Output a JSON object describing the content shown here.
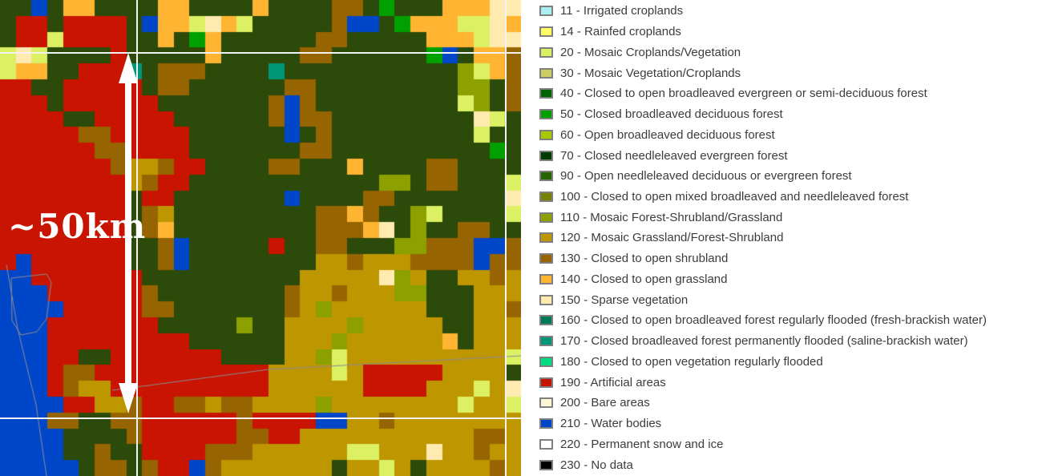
{
  "scale_annotation": {
    "label": "~50km",
    "arrow_color": "#FFFFFF"
  },
  "legend": {
    "separator": " - ",
    "items": [
      {
        "code": "11",
        "label": "Irrigated croplands",
        "color": "#AAF0F0"
      },
      {
        "code": "14",
        "label": "Rainfed croplands",
        "color": "#FFFF64"
      },
      {
        "code": "20",
        "label": "Mosaic Croplands/Vegetation",
        "color": "#DCF064"
      },
      {
        "code": "30",
        "label": "Mosaic Vegetation/Croplands",
        "color": "#CDCD66"
      },
      {
        "code": "40",
        "label": "Closed to open broadleaved evergreen or semi-deciduous forest",
        "color": "#006400"
      },
      {
        "code": "50",
        "label": "Closed broadleaved deciduous forest",
        "color": "#00A000"
      },
      {
        "code": "60",
        "label": "Open broadleaved deciduous forest",
        "color": "#AAC800"
      },
      {
        "code": "70",
        "label": "Closed needleleaved evergreen forest",
        "color": "#003C00"
      },
      {
        "code": "90",
        "label": "Open needleleaved deciduous or evergreen forest",
        "color": "#286400"
      },
      {
        "code": "100",
        "label": "Closed to open mixed broadleaved and needleleaved forest",
        "color": "#788200"
      },
      {
        "code": "110",
        "label": "Mosaic Forest-Shrubland/Grassland",
        "color": "#8CA000"
      },
      {
        "code": "120",
        "label": "Mosaic Grassland/Forest-Shrubland",
        "color": "#BE9600"
      },
      {
        "code": "130",
        "label": "Closed to open shrubland",
        "color": "#966400"
      },
      {
        "code": "140",
        "label": "Closed to open grassland",
        "color": "#FFB432"
      },
      {
        "code": "150",
        "label": "Sparse vegetation",
        "color": "#FFEBAF"
      },
      {
        "code": "160",
        "label": "Closed to open broadleaved forest regularly flooded (fresh-brackish water)",
        "color": "#00785A"
      },
      {
        "code": "170",
        "label": "Closed broadleaved forest permanently flooded (saline-brackish water)",
        "color": "#009678"
      },
      {
        "code": "180",
        "label": "Closed to open vegetation regularly flooded",
        "color": "#00DC82"
      },
      {
        "code": "190",
        "label": "Artificial areas",
        "color": "#C31400"
      },
      {
        "code": "200",
        "label": "Bare areas",
        "color": "#FFF5D7"
      },
      {
        "code": "210",
        "label": "Water bodies",
        "color": "#0046C8"
      },
      {
        "code": "220",
        "label": "Permanent snow and ice",
        "color": "#FFFFFF"
      },
      {
        "code": "230",
        "label": "No data",
        "color": "#000000"
      }
    ]
  },
  "map": {
    "palette": {
      "f": "#2C4A0A",
      "b": "#966400",
      "g": "#BE9600",
      "m": "#8CA000",
      "l": "#DCF064",
      "o": "#FFB432",
      "c": "#FFEBAF",
      "r": "#C81400",
      "w": "#0046C8",
      "t": "#009678",
      "k": "#00A000"
    },
    "grid": {
      "cols": 33,
      "rows": [
        "ffwfooffffooffffoffffbbfkfffooocc",
        "frrfrrrrfwoolcolfffffbwwfkooollco",
        "frrlrrrrffofkoffffffbbfffffooolcc",
        "lclffffrfffffofffffbbffffffkwfoob",
        "looffrrrtfbbbfffftfffffffffffmlob",
        "rrffrrrrrfbbffffffbbfffffffffmmfb",
        "rrrfrrrrrrfffffffbwbffffffffflmfb",
        "rrrrffrrrrrffffffbwbbfffffffffclf",
        "rrrrrbbrrrrrffffffwfbffffffffflff",
        "rrrrrrbbrrrrfffffffbbffffffffffkf",
        "rrrrrrrbggbrrffffbbfffoffffbbffff",
        "rrrrrrrrgbrrffffffffffffmmfbbfffl",
        "rrrrrrrrfrrfffffffwffffbbfffffffc",
        "rrrrrrrrfbgfffffffffbbobffmlffffl",
        "rrrrrrrrfbofffffffffbbbocfmffbbff",
        "rrrrrrrrffbwfffffrffbbfffmmbbbwwb",
        "rwrrrrrrffbwffffffffggbgggbbbbwbb",
        "wwrrrrrrrffffffffffgggggcmgffggbg",
        "wwwrrrrrrbffffffffbggbgggmmfffggg",
        "wwwwrrrrrbbfffffffbgmggggggfffggb",
        "wwwrrrrrrrfffffmffggggmgggggffggg",
        "wwwrrrrrrrrrffffffgggmggggggofggg",
        "wwwrrffrrrrrrrffffggmlggggggggggl",
        "wwwrbbrrrrrrrrrrrgggglgrrrrrggggf",
        "wwwrbggrrrrrrrrrrggggggrrrrggglgc",
        "wwwwrrggbrrbbgbbggggmgggggggglggl",
        "wwwbbffbbrrrrrrbrrrrwwggbgggggggg",
        "wwwwffffbrrrrrrbbrrgggggggggggbbg",
        "wwwwffbffrrrrbbbggggggllgggcggbgg",
        "wwwwwfbbfbrrwbgggggggfgglgfggggbg"
      ]
    },
    "gridlines": {
      "color": "#F2F2F2",
      "thickness": 2,
      "vertical_x": [
        170,
        630
      ],
      "horizontal_y": [
        65,
        521
      ]
    },
    "vector_lines": {
      "color": "#8C8C96",
      "polylines": [
        [
          [
            140,
            487
          ],
          [
            335,
            461
          ],
          [
            650,
            444
          ]
        ],
        [
          [
            8,
            330
          ],
          [
            22,
            410
          ],
          [
            45,
            505
          ],
          [
            58,
            594
          ]
        ],
        [
          [
            14,
            347
          ],
          [
            58,
            342
          ],
          [
            64,
            352
          ],
          [
            58,
            398
          ],
          [
            46,
            414
          ],
          [
            26,
            418
          ],
          [
            15,
            400
          ],
          [
            14,
            347
          ]
        ]
      ]
    }
  }
}
